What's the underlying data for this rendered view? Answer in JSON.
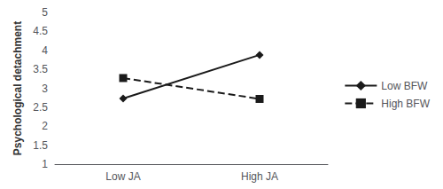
{
  "chart_data": {
    "type": "line",
    "categories": [
      "Low JA",
      "High JA"
    ],
    "series": [
      {
        "name": "Low BFW",
        "color": "#1a1a1a",
        "marker": "diamond",
        "line_style": "solid",
        "values": [
          2.73,
          3.88
        ]
      },
      {
        "name": "High BFW",
        "color": "#1a1a1a",
        "marker": "square",
        "line_style": "dashed",
        "values": [
          3.27,
          2.72
        ]
      }
    ],
    "ylabel": "Psychological detachment",
    "ylim": [
      1,
      5
    ],
    "yticks": [
      1,
      1.5,
      2,
      2.5,
      3,
      3.5,
      4,
      4.5,
      5
    ],
    "grid": false,
    "legend": "right"
  }
}
